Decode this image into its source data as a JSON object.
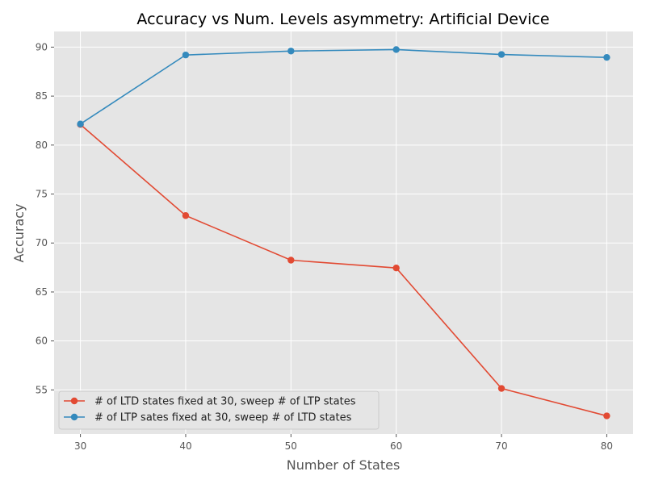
{
  "chart_data": {
    "type": "line",
    "title": "Accuracy vs Num. Levels asymmetry: Artificial Device",
    "xlabel": "Number of States",
    "ylabel": "Accuracy",
    "x": [
      30,
      40,
      50,
      60,
      70,
      80
    ],
    "xlim": [
      27.5,
      82.5
    ],
    "ylim": [
      50.5,
      91.6
    ],
    "xticks": [
      30,
      40,
      50,
      60,
      70,
      80
    ],
    "yticks": [
      55,
      60,
      65,
      70,
      75,
      80,
      85,
      90
    ],
    "grid": true,
    "legend_position": "lower-left",
    "series": [
      {
        "name": "# of LTD states fixed at 30, sweep # of LTP states",
        "color": "#E24A33",
        "values": [
          82.1,
          72.8,
          68.25,
          67.45,
          55.15,
          52.35
        ]
      },
      {
        "name": "# of LTP sates fixed at 30, sweep # of LTD states",
        "color": "#348ABD",
        "values": [
          82.15,
          89.2,
          89.6,
          89.75,
          89.25,
          88.95
        ]
      }
    ]
  }
}
